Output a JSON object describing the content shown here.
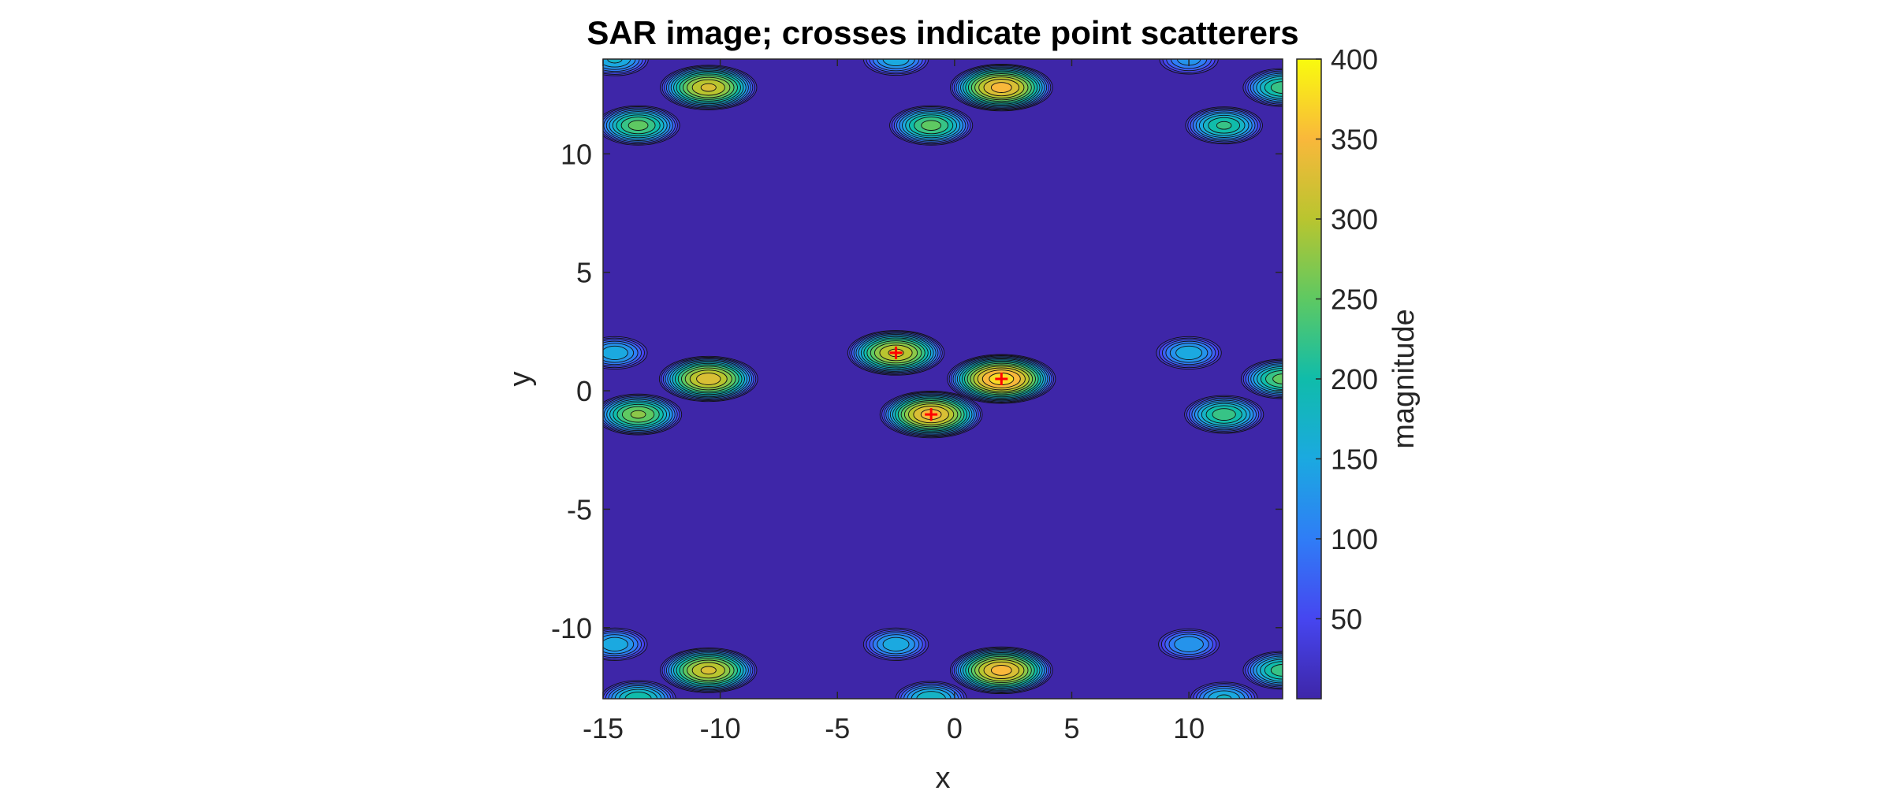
{
  "chart_data": {
    "type": "heatmap",
    "subtype": "filled-contour",
    "title": "SAR image; crosses indicate point scatterers",
    "xlabel": "x",
    "ylabel": "y",
    "xlim": [
      -15,
      14
    ],
    "ylim": [
      -13,
      14
    ],
    "x_ticks": [
      -15,
      -10,
      -5,
      0,
      5,
      10
    ],
    "y_ticks": [
      -10,
      -5,
      0,
      5,
      10
    ],
    "colorbar": {
      "label": "magnitude",
      "range": [
        0,
        400
      ],
      "ticks": [
        50,
        100,
        150,
        200,
        250,
        300,
        350,
        400
      ],
      "colormap": "parula"
    },
    "grid": false,
    "peaks": [
      {
        "x": -2.5,
        "y": 1.6,
        "magnitude": 330
      },
      {
        "x": 2.0,
        "y": 0.5,
        "magnitude": 390
      },
      {
        "x": -1.0,
        "y": -1.0,
        "magnitude": 360
      },
      {
        "x": -10.5,
        "y": 0.5,
        "magnitude": 340
      },
      {
        "x": -13.5,
        "y": -1.0,
        "magnitude": 280
      },
      {
        "x": -14.5,
        "y": 1.6,
        "magnitude": 170
      },
      {
        "x": 11.5,
        "y": -1.0,
        "magnitude": 240
      },
      {
        "x": 10.0,
        "y": 1.6,
        "magnitude": 170
      },
      {
        "x": 14.0,
        "y": 0.5,
        "magnitude": 260
      },
      {
        "x": -10.5,
        "y": 12.8,
        "magnitude": 330
      },
      {
        "x": -13.5,
        "y": 11.2,
        "magnitude": 260
      },
      {
        "x": -14.5,
        "y": 14.0,
        "magnitude": 180
      },
      {
        "x": 2.0,
        "y": 12.8,
        "magnitude": 360
      },
      {
        "x": -1.0,
        "y": 11.2,
        "magnitude": 260
      },
      {
        "x": -2.5,
        "y": 14.0,
        "magnitude": 170
      },
      {
        "x": 11.5,
        "y": 11.2,
        "magnitude": 230
      },
      {
        "x": 10.0,
        "y": 14.0,
        "magnitude": 140
      },
      {
        "x": 14.0,
        "y": 12.8,
        "magnitude": 240
      },
      {
        "x": -10.5,
        "y": -11.8,
        "magnitude": 330
      },
      {
        "x": -13.5,
        "y": -13.0,
        "magnitude": 220
      },
      {
        "x": -14.5,
        "y": -10.7,
        "magnitude": 170
      },
      {
        "x": 2.0,
        "y": -11.8,
        "magnitude": 360
      },
      {
        "x": -2.5,
        "y": -10.7,
        "magnitude": 170
      },
      {
        "x": -1.0,
        "y": -13.0,
        "magnitude": 200
      },
      {
        "x": 10.0,
        "y": -10.7,
        "magnitude": 150
      },
      {
        "x": 14.0,
        "y": -11.8,
        "magnitude": 240
      },
      {
        "x": 11.5,
        "y": -13.0,
        "magnitude": 180
      }
    ],
    "scatterers": [
      {
        "x": -2.5,
        "y": 1.6
      },
      {
        "x": 2.0,
        "y": 0.5
      },
      {
        "x": -1.0,
        "y": -1.0
      }
    ],
    "marker_color": "#ff0000",
    "background_color": "#3e26a8"
  }
}
